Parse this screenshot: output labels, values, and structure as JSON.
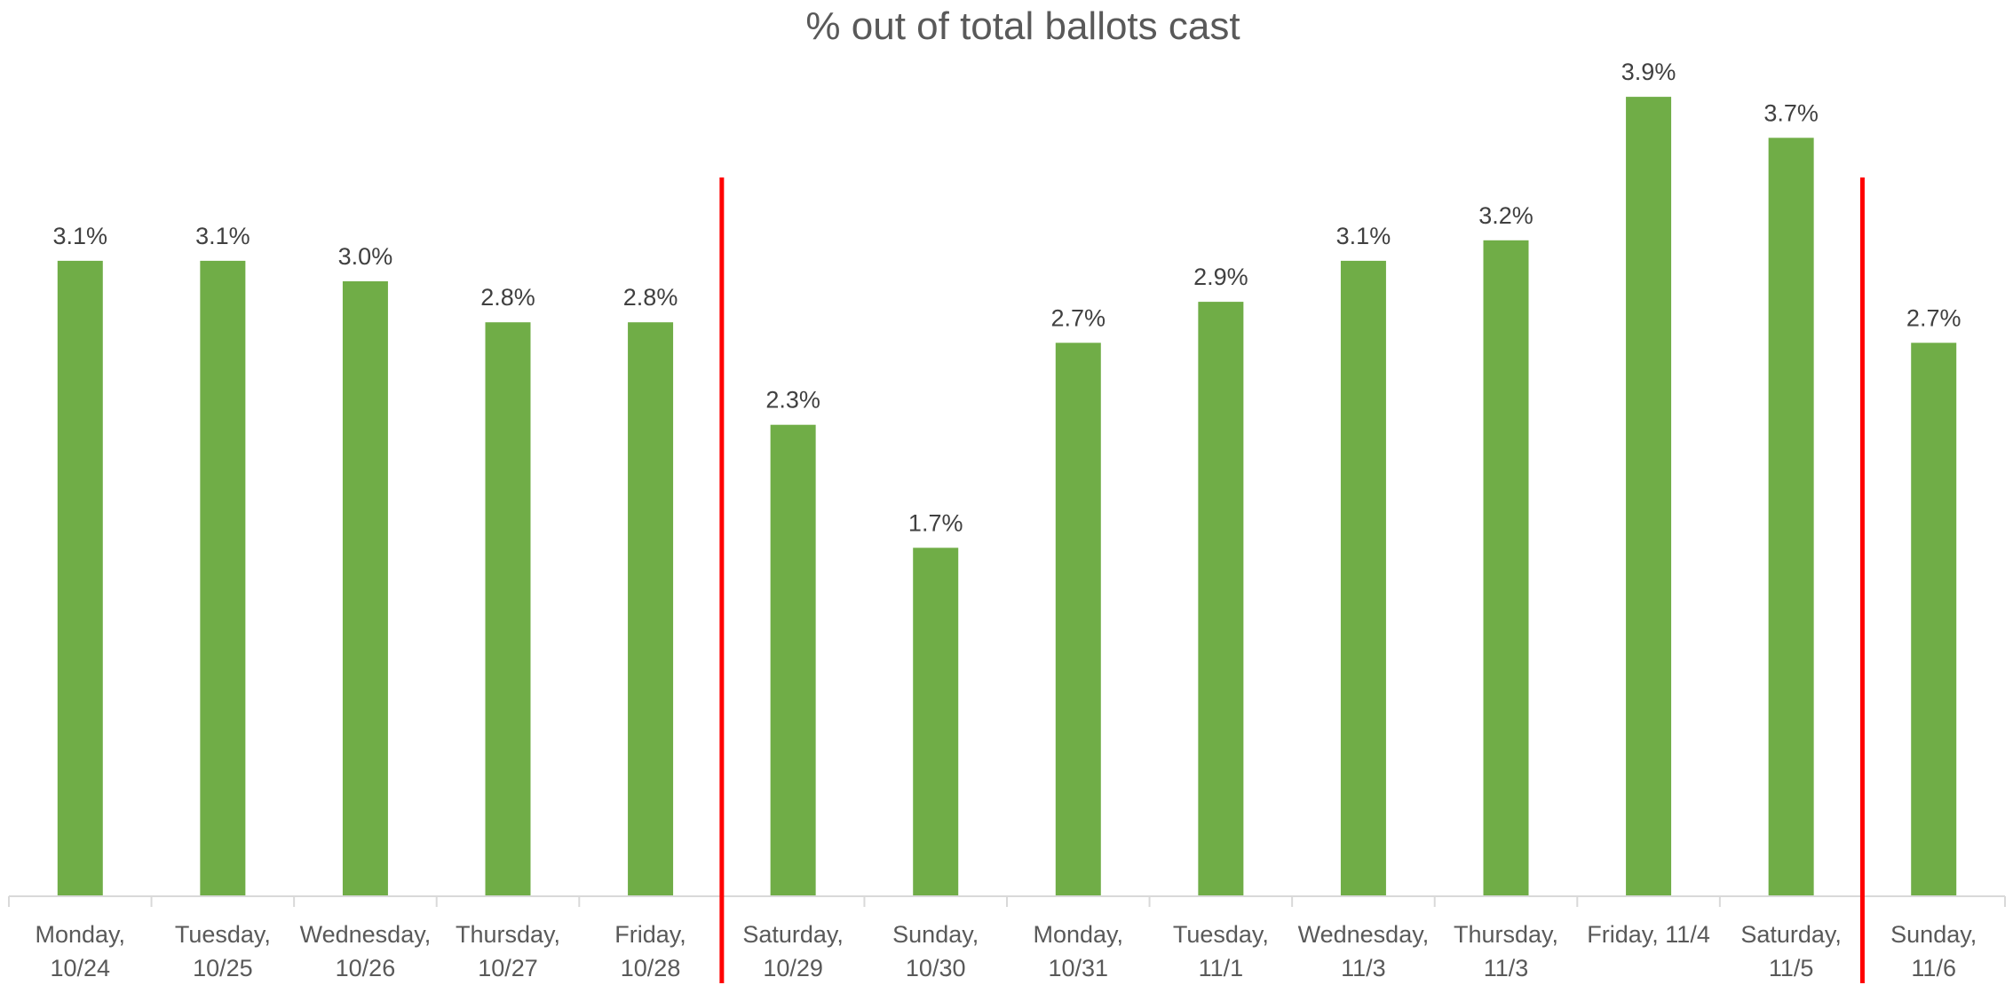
{
  "chart_data": {
    "type": "bar",
    "title": "% out of total ballots cast",
    "xlabel": "",
    "ylabel": "",
    "categories": [
      [
        "Monday,",
        "10/24"
      ],
      [
        "Tuesday,",
        "10/25"
      ],
      [
        "Wednesday,",
        "10/26"
      ],
      [
        "Thursday,",
        "10/27"
      ],
      [
        "Friday,",
        "10/28"
      ],
      [
        "Saturday,",
        "10/29"
      ],
      [
        "Sunday,",
        "10/30"
      ],
      [
        "Monday,",
        "10/31"
      ],
      [
        "Tuesday,",
        "11/1"
      ],
      [
        "Wednesday,",
        "11/3"
      ],
      [
        "Thursday,",
        "11/3"
      ],
      [
        "Friday, 11/4"
      ],
      [
        "Saturday,",
        "11/5"
      ],
      [
        "Sunday,",
        "11/6"
      ]
    ],
    "values": [
      3.1,
      3.1,
      3.0,
      2.8,
      2.8,
      2.3,
      1.7,
      2.7,
      2.9,
      3.1,
      3.2,
      3.9,
      3.7,
      2.7
    ],
    "data_labels": [
      "3.1%",
      "3.1%",
      "3.0%",
      "2.8%",
      "2.8%",
      "2.3%",
      "1.7%",
      "2.7%",
      "2.9%",
      "3.1%",
      "3.2%",
      "3.9%",
      "3.7%",
      "2.7%"
    ],
    "ylim": [
      0,
      4.0
    ],
    "grid": false,
    "legend": "none",
    "colors": {
      "bar": "#70ad47",
      "axis": "#d9d9d9",
      "marker": "#ff0000"
    },
    "vertical_markers_after_category": [
      4,
      12
    ]
  }
}
